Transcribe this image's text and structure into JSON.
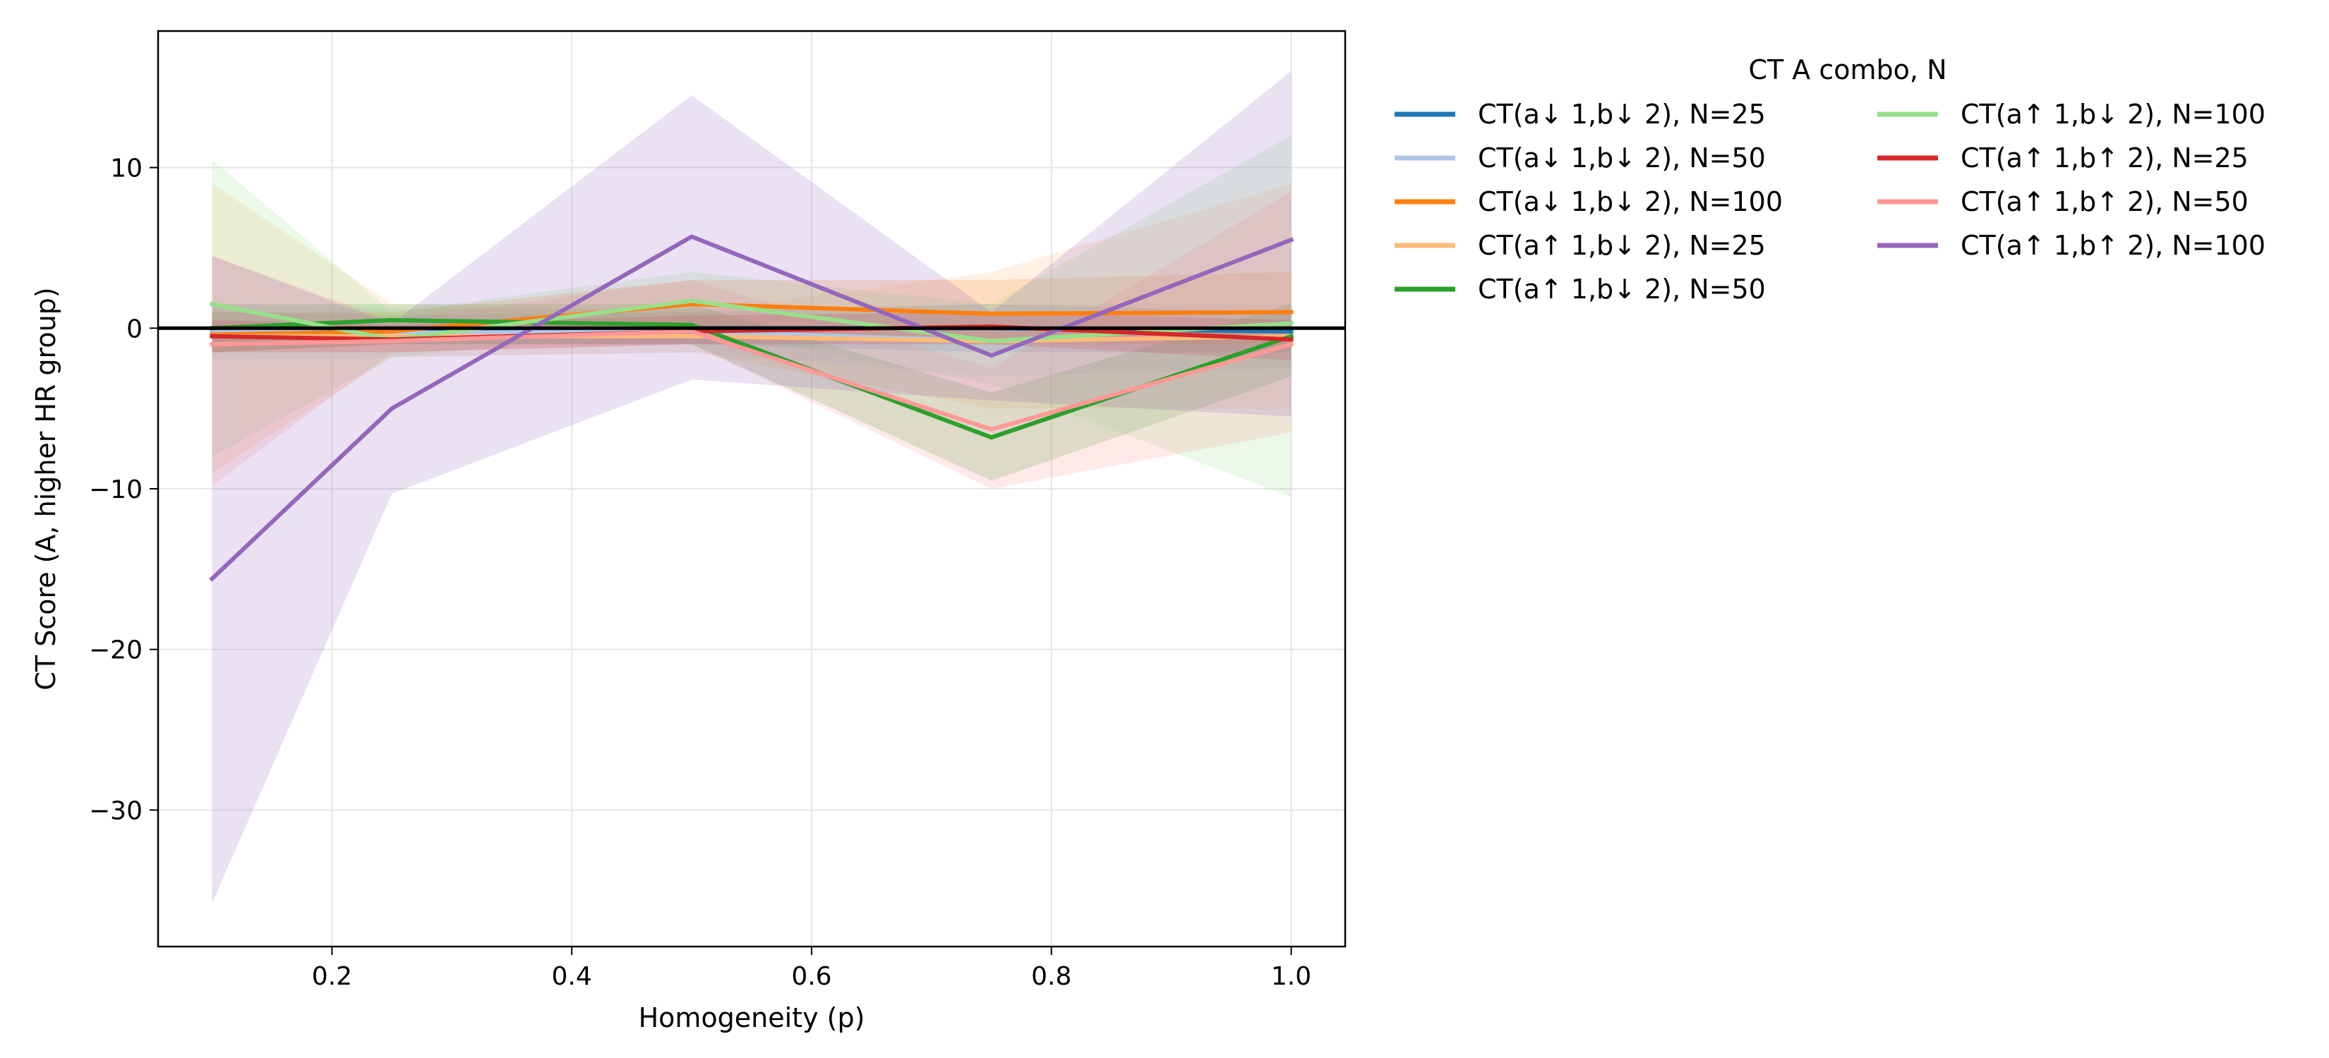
{
  "chart_data": {
    "type": "line",
    "title": "",
    "xlabel": "Homogeneity (p)",
    "ylabel": "CT Score (A, higher HR group)",
    "xlim": [
      0.055,
      1.045
    ],
    "ylim": [
      -38.5,
      18.5
    ],
    "x_ticks": [
      0.2,
      0.4,
      0.6,
      0.8,
      1.0
    ],
    "x_tick_labels": [
      "0.2",
      "0.4",
      "0.6",
      "0.8",
      "1.0"
    ],
    "y_ticks": [
      10,
      0,
      -10,
      -20,
      -30
    ],
    "y_tick_labels": [
      "10",
      "0",
      "−10",
      "−20",
      "−30"
    ],
    "grid": true,
    "reference_line": 0,
    "legend_title": "CT A combo, N",
    "legend_position": "outside-right",
    "x": [
      0.1,
      0.25,
      0.5,
      0.75,
      1.0
    ],
    "series": [
      {
        "name": "CT(a↓ 1,b↓ 2), N=25",
        "color": "#1f77b4",
        "values": [
          -0.3,
          -0.2,
          0.0,
          0.0,
          -0.2
        ],
        "lower": [
          -1.5,
          -1.0,
          -1.0,
          -1.5,
          -1.5
        ],
        "upper": [
          1.0,
          0.8,
          1.0,
          1.5,
          1.0
        ]
      },
      {
        "name": "CT(a↓ 1,b↓ 2), N=50",
        "color": "#aec7e8",
        "values": [
          -0.2,
          -0.3,
          -0.2,
          -0.8,
          -0.5
        ],
        "lower": [
          -2.0,
          -1.8,
          -1.5,
          -3.0,
          -2.5
        ],
        "upper": [
          1.5,
          1.2,
          1.2,
          1.5,
          1.5
        ]
      },
      {
        "name": "CT(a↓ 1,b↓ 2), N=100",
        "color": "#ff7f0e",
        "values": [
          -0.4,
          -0.2,
          1.5,
          0.9,
          1.0
        ],
        "lower": [
          -1.5,
          -1.0,
          0.0,
          -1.0,
          -1.0
        ],
        "upper": [
          1.0,
          1.0,
          3.0,
          3.0,
          3.5
        ]
      },
      {
        "name": "CT(a↑ 1,b↓ 2), N=25",
        "color": "#ffbb78",
        "values": [
          -0.5,
          -0.5,
          -0.5,
          -0.8,
          -0.5
        ],
        "lower": [
          -9.0,
          -1.8,
          -1.5,
          -5.0,
          -5.0
        ],
        "upper": [
          9.0,
          1.5,
          1.0,
          3.5,
          9.0
        ]
      },
      {
        "name": "CT(a↑ 1,b↓ 2), N=50",
        "color": "#2ca02c",
        "values": [
          0.0,
          0.5,
          0.2,
          -6.8,
          -0.5
        ],
        "lower": [
          -1.5,
          -1.0,
          -1.0,
          -9.5,
          -3.0
        ],
        "upper": [
          1.5,
          1.5,
          1.5,
          -4.0,
          1.5
        ]
      },
      {
        "name": "CT(a↑ 1,b↓ 2), N=100",
        "color": "#98df8a",
        "values": [
          1.5,
          -0.7,
          1.7,
          -0.8,
          0.3
        ],
        "lower": [
          -8.0,
          -1.8,
          0.0,
          -3.5,
          -10.5
        ],
        "upper": [
          10.5,
          1.0,
          3.5,
          1.5,
          12.0
        ]
      },
      {
        "name": "CT(a↑ 1,b↑ 2), N=25",
        "color": "#d62728",
        "values": [
          -0.5,
          -0.7,
          -0.2,
          0.1,
          -0.7
        ],
        "lower": [
          -1.5,
          -1.5,
          -1.0,
          -1.0,
          -2.0
        ],
        "upper": [
          0.5,
          0.2,
          0.8,
          1.0,
          0.5
        ]
      },
      {
        "name": "CT(a↑ 1,b↑ 2), N=50",
        "color": "#ff9896",
        "values": [
          -1.0,
          -0.8,
          -0.2,
          -6.3,
          -1.0
        ],
        "lower": [
          -9.8,
          -1.5,
          -1.0,
          -10.0,
          -6.5
        ],
        "upper": [
          4.5,
          0.5,
          3.0,
          -2.5,
          8.5
        ]
      },
      {
        "name": "CT(a↑ 1,b↑ 2), N=100",
        "color": "#9467bd",
        "values": [
          -15.6,
          -5.0,
          5.7,
          -1.7,
          5.5
        ],
        "lower": [
          -35.8,
          -10.3,
          -3.2,
          -4.5,
          -5.5
        ],
        "upper": [
          4.5,
          0.3,
          14.5,
          1.0,
          16.0
        ]
      }
    ]
  }
}
